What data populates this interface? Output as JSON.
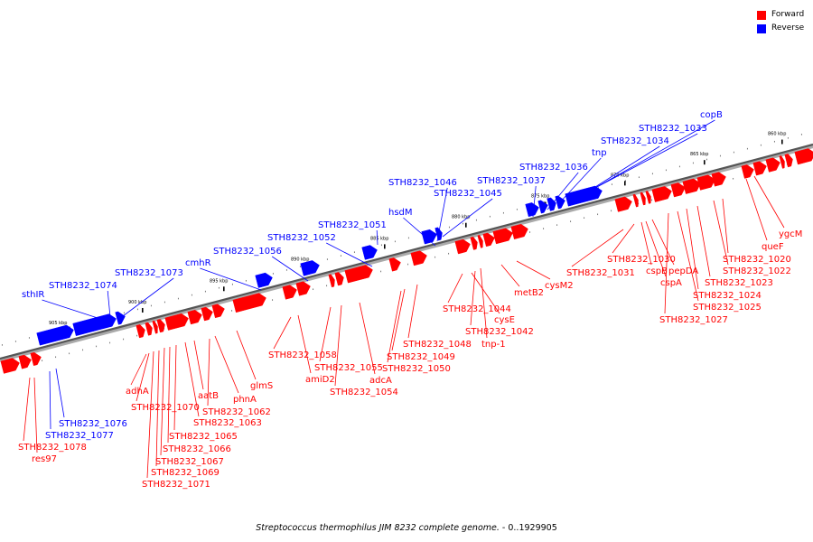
{
  "legend": {
    "forward": {
      "label": "Forward",
      "color": "#ff0000"
    },
    "reverse": {
      "label": "Reverse",
      "color": "#0000ff"
    }
  },
  "caption": {
    "organism": "Streptococcus thermophilus JIM 8232 complete genome.",
    "range": " - 0..1929905"
  },
  "axis": {
    "unit": "kbp",
    "ticks": [
      {
        "kbp": 860,
        "label": "860 kbp"
      },
      {
        "kbp": 865,
        "label": "865 kbp"
      },
      {
        "kbp": 870,
        "label": "870 kbp"
      },
      {
        "kbp": 875,
        "label": "875 kbp"
      },
      {
        "kbp": 880,
        "label": "880 kbp"
      },
      {
        "kbp": 885,
        "label": "885 kbp"
      },
      {
        "kbp": 890,
        "label": "890 kbp"
      },
      {
        "kbp": 895,
        "label": "895 kbp"
      },
      {
        "kbp": 900,
        "label": "900 kbp"
      },
      {
        "kbp": 905,
        "label": "905 kbp"
      }
    ]
  },
  "labels": {
    "reverse": [
      "sthIR",
      "STH8232_1074",
      "STH8232_1073",
      "cmhR",
      "STH8232_1056",
      "STH8232_1052",
      "STH8232_1051",
      "hsdM",
      "STH8232_1046",
      "STH8232_1045",
      "STH8232_1037",
      "STH8232_1036",
      "tnp",
      "STH8232_1034",
      "STH8232_1033",
      "copB",
      "STH8232_1076",
      "STH8232_1077"
    ],
    "forward": [
      "STH8232_1078",
      "res97",
      "adhA",
      "STH8232_1070",
      "STH8232_1071",
      "STH8232_1069",
      "STH8232_1067",
      "STH8232_1066",
      "STH8232_1065",
      "STH8232_1063",
      "aatB",
      "STH8232_1062",
      "phnA",
      "glmS",
      "STH8232_1058",
      "amiD2",
      "STH8232_1055",
      "STH8232_1054",
      "adcA",
      "STH8232_1050",
      "STH8232_1049",
      "STH8232_1048",
      "STH8232_1044",
      "cysE",
      "STH8232_1042",
      "tnp-1",
      "metB2",
      "cysM2",
      "STH8232_1031",
      "STH8232_1030",
      "cspB",
      "cspA",
      "pepDA",
      "STH8232_1027",
      "STH8232_1025",
      "STH8232_1024",
      "STH8232_1023",
      "STH8232_1022",
      "STH8232_1020",
      "queF",
      "ygcM"
    ]
  }
}
